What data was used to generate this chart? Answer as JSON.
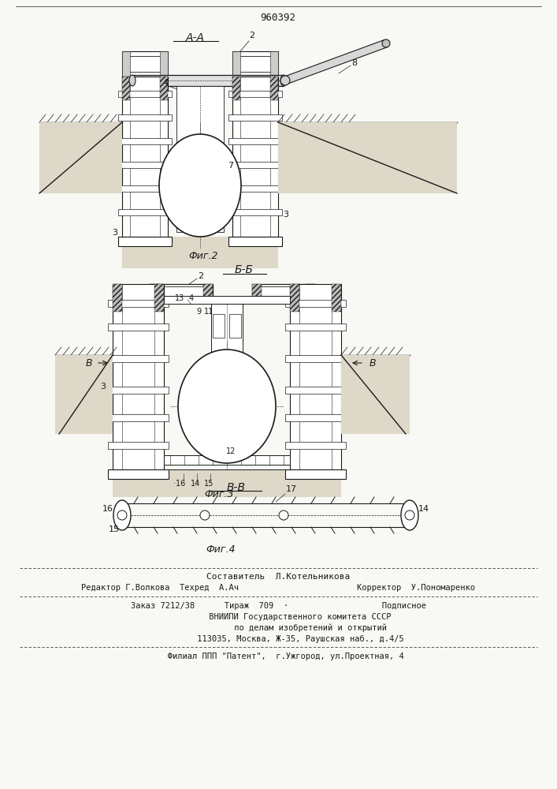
{
  "patent_number": "960392",
  "background_color": "#f8f8f4",
  "line_color": "#1a1a1a",
  "fig2_label": "А-А",
  "fig2_caption": "Фиг.2",
  "fig3_label": "Б-Б",
  "fig3_caption": "Фиг.3",
  "fig4_label": "В-В",
  "fig4_caption": "Фиг.4",
  "footer_lines": [
    "Составитель  Л.Котельникова",
    "Редактор Г.Волкова  Техред  А.Ач                        Корректор  У.Пономаренко",
    "Заказ 7212/38      Тираж  709  ·                   Подписное",
    "         ВНИИПИ Государственного комитета СССР",
    "             по делам изобретений и открытий",
    "         113035, Москва, Ж-35, Раушская наб., д.4/5",
    "   Филиал ППП \"Патент\",  г.Ужгород, ул.Проектная, 4"
  ]
}
